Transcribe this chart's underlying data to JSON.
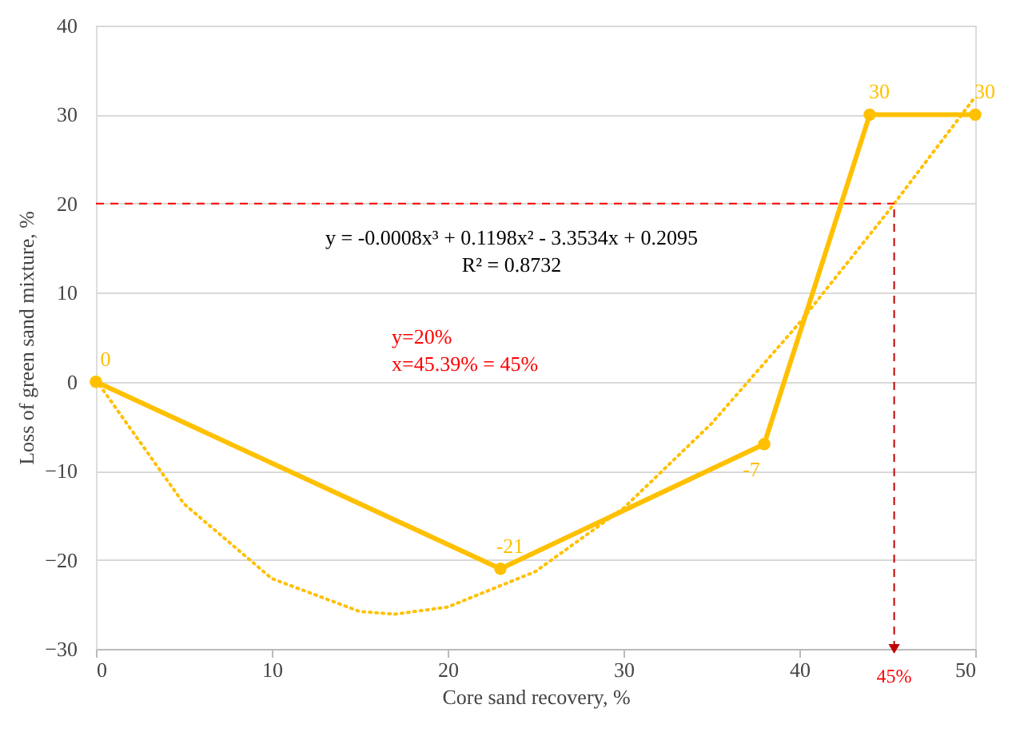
{
  "chart_data": {
    "type": "line",
    "xlabel": "Core sand recovery, %",
    "ylabel": "Loss of green sand mixture, %",
    "xlim": [
      0,
      50
    ],
    "xticks": [
      0,
      10,
      20,
      30,
      40,
      50
    ],
    "ylim": [
      -30,
      40
    ],
    "yticks": [
      -30,
      -20,
      -10,
      0,
      10,
      20,
      30,
      40
    ],
    "grid": "y",
    "series": [
      {
        "color": "#ffc000",
        "x": [
          0,
          23,
          38,
          44,
          50
        ],
        "values": [
          0,
          -21,
          -7,
          30,
          30
        ],
        "marker": "circle",
        "line_style": "solid",
        "data_labels": true
      },
      {
        "type": "line",
        "color": "#ffc000",
        "x": [
          0,
          5,
          10,
          15,
          17,
          20,
          25,
          30,
          35,
          40,
          45,
          50
        ],
        "values": [
          0.2,
          -13.7,
          -22.1,
          -25.8,
          -26.1,
          -25.3,
          -21.3,
          -14.2,
          -4.7,
          6.6,
          19.0,
          32.0
        ],
        "marker": "none",
        "line_style": "dotted"
      }
    ],
    "ref_lines": [
      {
        "axis": "y",
        "value": 20,
        "color": "#ff0000",
        "line_style": "dashed"
      },
      {
        "axis": "x",
        "value": 45.39,
        "color": "#c00000",
        "line_style": "dashed"
      }
    ],
    "annotations": [
      "y = -0.0008x³ + 0.1198x² - 3.3534x + 0.2095",
      "R² = 0.8732",
      "y=20%",
      "x=45.39% = 45%",
      {
        "text": "45%",
        "x": 45.39,
        "y": -30
      }
    ]
  }
}
